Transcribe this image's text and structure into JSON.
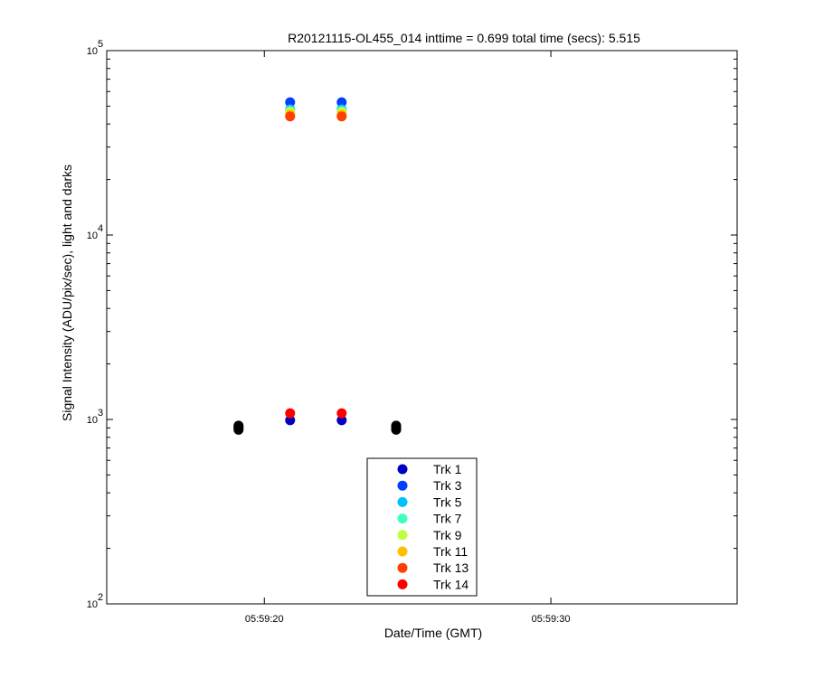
{
  "chart_data": {
    "type": "scatter",
    "title": "R20121115-OL455_014 inttime = 0.699 total time (secs): 5.515",
    "xlabel": "Date/Time (GMT)",
    "ylabel": "Signal Intensity (ADU/pix/sec), light and darks",
    "y_scale": "log",
    "xlim_seconds": [
      14.5,
      36.5
    ],
    "ylim": [
      100,
      100000
    ],
    "x_ticks": [
      {
        "value": 20,
        "label": "05:59:20"
      },
      {
        "value": 30,
        "label": "05:59:30"
      }
    ],
    "y_ticks": [
      {
        "value": 100,
        "base": "10",
        "exp": "2"
      },
      {
        "value": 1000,
        "base": "10",
        "exp": "3"
      },
      {
        "value": 10000,
        "base": "10",
        "exp": "4"
      },
      {
        "value": 100000,
        "base": "10",
        "exp": "5"
      }
    ],
    "grid": false,
    "legend_position": "bottom-center",
    "series": [
      {
        "name": "Trk 1",
        "color": "#0000bf",
        "x": [
          20.9,
          22.7
        ],
        "y": [
          990,
          990
        ]
      },
      {
        "name": "Trk 3",
        "color": "#0040ff",
        "x": [
          20.9,
          22.7
        ],
        "y": [
          52500,
          52500
        ]
      },
      {
        "name": "Trk 5",
        "color": "#00bfff",
        "x": [
          20.9,
          22.7
        ],
        "y": [
          48000,
          48000
        ]
      },
      {
        "name": "Trk 7",
        "color": "#40ffbf",
        "x": [
          20.9,
          22.7
        ],
        "y": [
          47000,
          47000
        ]
      },
      {
        "name": "Trk 9",
        "color": "#bfff40",
        "x": [
          20.9,
          22.7
        ],
        "y": [
          46500,
          46500
        ]
      },
      {
        "name": "Trk 11",
        "color": "#ffbf00",
        "x": [
          20.9,
          22.7
        ],
        "y": [
          45000,
          45000
        ]
      },
      {
        "name": "Trk 13",
        "color": "#ff4000",
        "x": [
          20.9,
          22.7
        ],
        "y": [
          44000,
          44000
        ]
      },
      {
        "name": "Trk 14",
        "color": "#ff0000",
        "x": [
          20.9,
          22.7
        ],
        "y": [
          1080,
          1080
        ]
      }
    ],
    "dark_points": {
      "color": "#000000",
      "x": [
        19.1,
        19.1,
        19.1,
        19.1,
        24.6,
        24.6,
        24.6,
        24.6
      ],
      "y": [
        880,
        895,
        910,
        925,
        880,
        895,
        910,
        925
      ]
    }
  }
}
